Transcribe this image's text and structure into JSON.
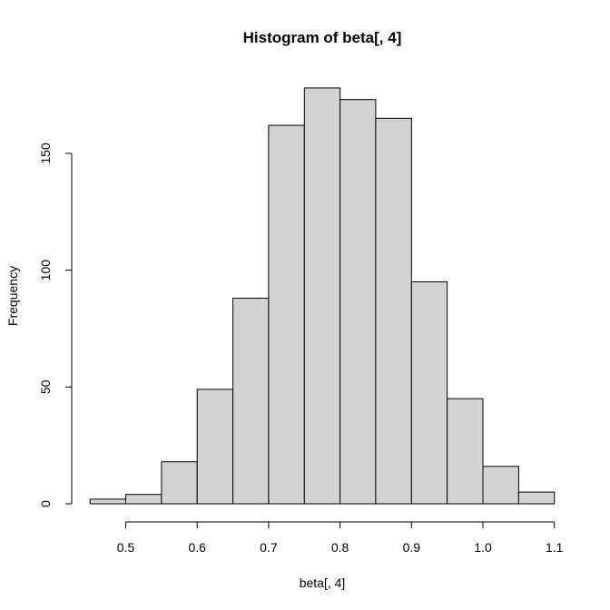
{
  "chart_data": {
    "type": "bar",
    "title": "Histogram of beta[, 4]",
    "xlabel": "beta[, 4]",
    "ylabel": "Frequency",
    "bin_edges": [
      0.45,
      0.5,
      0.55,
      0.6,
      0.65,
      0.7,
      0.75,
      0.8,
      0.85,
      0.9,
      0.95,
      1.0,
      1.05,
      1.1
    ],
    "counts": [
      2,
      4,
      18,
      49,
      88,
      162,
      178,
      173,
      165,
      95,
      45,
      16,
      5
    ],
    "xlim": [
      0.45,
      1.1
    ],
    "ylim": [
      0,
      180
    ],
    "x_ticks": [
      0.5,
      0.6,
      0.7,
      0.8,
      0.9,
      1.0,
      1.1
    ],
    "x_tick_labels": [
      "0.5",
      "0.6",
      "0.7",
      "0.8",
      "0.9",
      "1.0",
      "1.1"
    ],
    "y_ticks": [
      0,
      50,
      100,
      150
    ],
    "y_tick_labels": [
      "0",
      "50",
      "100",
      "150"
    ],
    "grid": false,
    "legend": "none",
    "colors": {
      "bar_fill": "#d3d3d3",
      "bar_stroke": "#000000"
    }
  }
}
